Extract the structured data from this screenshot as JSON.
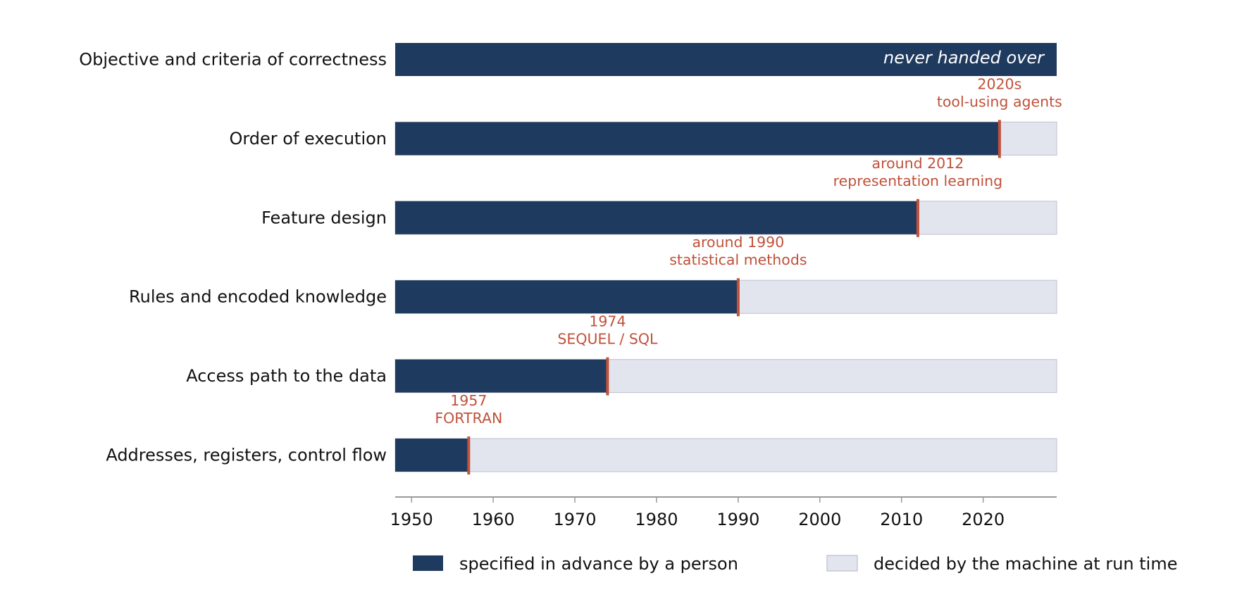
{
  "chart_data": {
    "type": "bar",
    "orientation": "horizontal",
    "categories": [
      "Objective and criteria of correctness",
      "Order of execution",
      "Feature design",
      "Rules and encoded knowledge",
      "Access path to the data",
      "Addresses, registers, control flow"
    ],
    "series": [
      {
        "name": "specified in advance by a person",
        "color": "#1f3a5f",
        "values": [
          2029,
          2022,
          2012,
          1990,
          1974,
          1957
        ]
      },
      {
        "name": "decided by the machine at run time",
        "color": "#e2e5ee"
      }
    ],
    "handover_years": [
      null,
      2022,
      2012,
      1990,
      1974,
      1957
    ],
    "annotations": [
      {
        "category": 0,
        "text": "never handed over"
      },
      {
        "category": 1,
        "year": 2022,
        "lines": [
          "2020s",
          "tool-using agents"
        ]
      },
      {
        "category": 2,
        "year": 2012,
        "lines": [
          "around 2012",
          "representation learning"
        ]
      },
      {
        "category": 3,
        "year": 1990,
        "lines": [
          "around 1990",
          "statistical methods"
        ]
      },
      {
        "category": 4,
        "year": 1974,
        "lines": [
          "1974",
          "SEQUEL / SQL"
        ]
      },
      {
        "category": 5,
        "year": 1957,
        "lines": [
          "1957",
          "FORTRAN"
        ]
      }
    ],
    "xlim": [
      1948,
      2029
    ],
    "xticks": [
      1950,
      1960,
      1970,
      1980,
      1990,
      2000,
      2010,
      2020
    ],
    "xlabel": "",
    "ylabel": "",
    "title": "",
    "legend": "bottom",
    "grid": false,
    "accent_color": "#c0513a"
  }
}
